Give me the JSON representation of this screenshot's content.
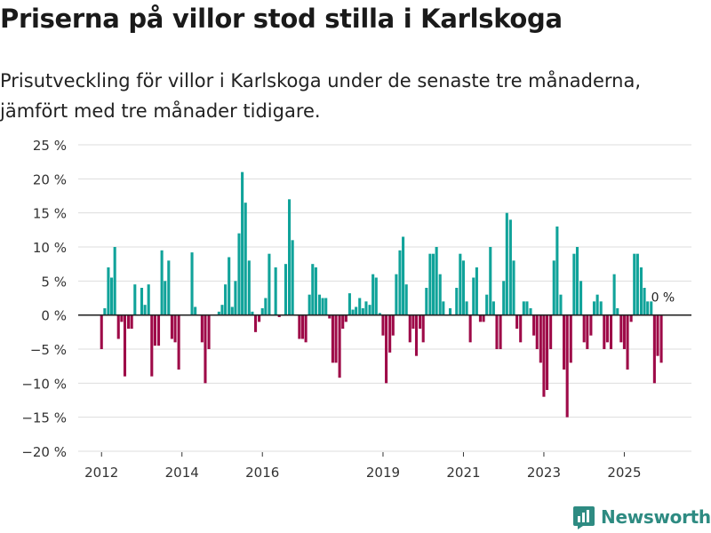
{
  "title": "Priserna på villor stod stilla i Karlskoga",
  "subtitle": "Prisutveckling för villor i Karlskoga under de senaste tre månaderna, jämfört med tre månader tidigare.",
  "brand": "Newsworthy",
  "colors": {
    "positive": "#10a39a",
    "negative": "#9e0a48",
    "grid": "#dddddd",
    "brand": "#2e8b82"
  },
  "chart_data": {
    "type": "bar",
    "ylabel": "",
    "xlabel": "",
    "ylim": [
      -20,
      25
    ],
    "xlim": [
      2011.42,
      2026.67
    ],
    "yticks": [
      -20,
      -15,
      -10,
      -5,
      0,
      5,
      10,
      15,
      20,
      25
    ],
    "ytick_labels": [
      "−20 %",
      "−15 %",
      "−10 %",
      "−5 %",
      "0 %",
      "5 %",
      "10 %",
      "15 %",
      "20 %",
      "25 %"
    ],
    "xticks": [
      2012,
      2014,
      2016,
      2019,
      2021,
      2023,
      2025
    ],
    "xtick_labels": [
      "2012",
      "2014",
      "2016",
      "2019",
      "2021",
      "2023",
      "2025"
    ],
    "bar_step": 0.0833,
    "annotation": {
      "text": "0 %",
      "x": 2025.6,
      "y": 0
    },
    "points": [
      [
        2012.0,
        -5
      ],
      [
        2012.08,
        1
      ],
      [
        2012.17,
        7
      ],
      [
        2012.25,
        5.5
      ],
      [
        2012.33,
        10
      ],
      [
        2012.42,
        -3.5
      ],
      [
        2012.5,
        -1
      ],
      [
        2012.58,
        -9
      ],
      [
        2012.67,
        -2
      ],
      [
        2012.75,
        -2
      ],
      [
        2012.83,
        4.5
      ],
      [
        2013.0,
        4
      ],
      [
        2013.08,
        1.5
      ],
      [
        2013.17,
        4.5
      ],
      [
        2013.25,
        -9
      ],
      [
        2013.33,
        -4.5
      ],
      [
        2013.42,
        -4.5
      ],
      [
        2013.5,
        9.5
      ],
      [
        2013.58,
        5
      ],
      [
        2013.67,
        8
      ],
      [
        2013.75,
        -3.5
      ],
      [
        2013.83,
        -4
      ],
      [
        2013.92,
        -8
      ],
      [
        2014.25,
        9.2
      ],
      [
        2014.33,
        1.2
      ],
      [
        2014.5,
        -4
      ],
      [
        2014.58,
        -10
      ],
      [
        2014.67,
        -5
      ],
      [
        2014.92,
        0.5
      ],
      [
        2015.0,
        1.5
      ],
      [
        2015.08,
        4.5
      ],
      [
        2015.17,
        8.5
      ],
      [
        2015.25,
        1.2
      ],
      [
        2015.33,
        5
      ],
      [
        2015.42,
        12
      ],
      [
        2015.5,
        21
      ],
      [
        2015.58,
        16.5
      ],
      [
        2015.67,
        8
      ],
      [
        2015.75,
        0.5
      ],
      [
        2015.83,
        -2.5
      ],
      [
        2015.92,
        -1
      ],
      [
        2016.0,
        1
      ],
      [
        2016.08,
        2.5
      ],
      [
        2016.17,
        9
      ],
      [
        2016.33,
        7
      ],
      [
        2016.42,
        -0.3
      ],
      [
        2016.58,
        7.5
      ],
      [
        2016.67,
        17
      ],
      [
        2016.75,
        11
      ],
      [
        2016.92,
        -3.5
      ],
      [
        2017.0,
        -3.5
      ],
      [
        2017.08,
        -4
      ],
      [
        2017.17,
        3
      ],
      [
        2017.25,
        7.5
      ],
      [
        2017.33,
        7
      ],
      [
        2017.42,
        3
      ],
      [
        2017.5,
        2.5
      ],
      [
        2017.58,
        2.5
      ],
      [
        2017.67,
        -0.5
      ],
      [
        2017.75,
        -7
      ],
      [
        2017.83,
        -7
      ],
      [
        2017.92,
        -9.2
      ],
      [
        2018.0,
        -2
      ],
      [
        2018.08,
        -1
      ],
      [
        2018.17,
        3.2
      ],
      [
        2018.25,
        0.8
      ],
      [
        2018.33,
        1.2
      ],
      [
        2018.42,
        2.5
      ],
      [
        2018.5,
        1
      ],
      [
        2018.58,
        2
      ],
      [
        2018.67,
        1.5
      ],
      [
        2018.75,
        6
      ],
      [
        2018.83,
        5.5
      ],
      [
        2018.92,
        0.3
      ],
      [
        2019.0,
        -3
      ],
      [
        2019.08,
        -10
      ],
      [
        2019.17,
        -5.5
      ],
      [
        2019.25,
        -3
      ],
      [
        2019.33,
        6
      ],
      [
        2019.42,
        9.5
      ],
      [
        2019.5,
        11.5
      ],
      [
        2019.58,
        4.5
      ],
      [
        2019.67,
        -4
      ],
      [
        2019.75,
        -2
      ],
      [
        2019.83,
        -6
      ],
      [
        2019.92,
        -2
      ],
      [
        2020.0,
        -4
      ],
      [
        2020.08,
        4
      ],
      [
        2020.17,
        9
      ],
      [
        2020.25,
        9
      ],
      [
        2020.33,
        10
      ],
      [
        2020.42,
        6
      ],
      [
        2020.5,
        2
      ],
      [
        2020.67,
        1
      ],
      [
        2020.83,
        4
      ],
      [
        2020.92,
        9
      ],
      [
        2021.0,
        8
      ],
      [
        2021.08,
        2
      ],
      [
        2021.17,
        -4
      ],
      [
        2021.25,
        5.5
      ],
      [
        2021.33,
        7
      ],
      [
        2021.42,
        -1
      ],
      [
        2021.5,
        -1
      ],
      [
        2021.58,
        3
      ],
      [
        2021.67,
        10
      ],
      [
        2021.75,
        2
      ],
      [
        2021.83,
        -5
      ],
      [
        2021.92,
        -5
      ],
      [
        2022.0,
        5
      ],
      [
        2022.08,
        15
      ],
      [
        2022.17,
        14
      ],
      [
        2022.25,
        8
      ],
      [
        2022.33,
        -2
      ],
      [
        2022.42,
        -4
      ],
      [
        2022.5,
        2
      ],
      [
        2022.58,
        2
      ],
      [
        2022.67,
        1
      ],
      [
        2022.75,
        -3
      ],
      [
        2022.83,
        -5
      ],
      [
        2022.92,
        -7
      ],
      [
        2023.0,
        -12
      ],
      [
        2023.08,
        -11
      ],
      [
        2023.17,
        -5
      ],
      [
        2023.25,
        8
      ],
      [
        2023.33,
        13
      ],
      [
        2023.42,
        3
      ],
      [
        2023.5,
        -8
      ],
      [
        2023.58,
        -15
      ],
      [
        2023.67,
        -7
      ],
      [
        2023.75,
        9
      ],
      [
        2023.83,
        10
      ],
      [
        2023.92,
        5
      ],
      [
        2024.0,
        -4
      ],
      [
        2024.08,
        -5
      ],
      [
        2024.17,
        -3
      ],
      [
        2024.25,
        2
      ],
      [
        2024.33,
        3
      ],
      [
        2024.42,
        2
      ],
      [
        2024.5,
        -5
      ],
      [
        2024.58,
        -4
      ],
      [
        2024.67,
        -5
      ],
      [
        2024.75,
        6
      ],
      [
        2024.83,
        1
      ],
      [
        2024.92,
        -4
      ],
      [
        2025.0,
        -5
      ],
      [
        2025.08,
        -8
      ],
      [
        2025.17,
        -1
      ],
      [
        2025.25,
        9
      ],
      [
        2025.33,
        9
      ],
      [
        2025.42,
        7
      ],
      [
        2025.5,
        4
      ],
      [
        2025.58,
        2
      ],
      [
        2025.67,
        2
      ],
      [
        2025.75,
        -10
      ],
      [
        2025.83,
        -6
      ],
      [
        2025.92,
        -7
      ]
    ]
  }
}
